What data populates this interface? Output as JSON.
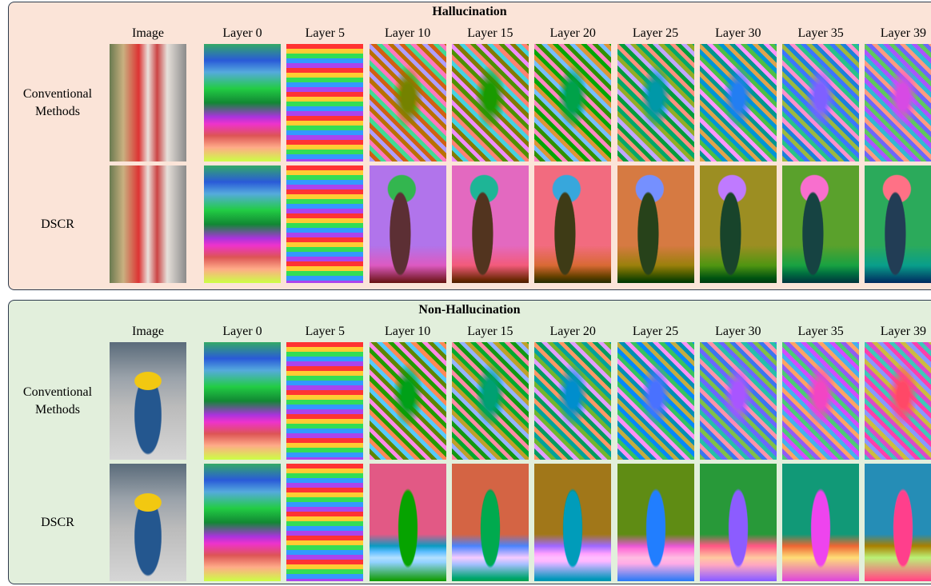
{
  "panels": [
    {
      "title": "Hallucination",
      "columns": [
        "Image",
        "Layer 0",
        "Layer 5",
        "Layer 10",
        "Layer 15",
        "Layer 20",
        "Layer 25",
        "Layer 30",
        "Layer 35",
        "Layer 39"
      ],
      "rows": [
        "Conventional Methods",
        "DSCR"
      ]
    },
    {
      "title": "Non-Hallucination",
      "columns": [
        "Image",
        "Layer 0",
        "Layer 5",
        "Layer 10",
        "Layer 15",
        "Layer 20",
        "Layer 25",
        "Layer 30",
        "Layer 35",
        "Layer 39"
      ],
      "rows": [
        "Conventional Methods",
        "DSCR"
      ]
    }
  ]
}
